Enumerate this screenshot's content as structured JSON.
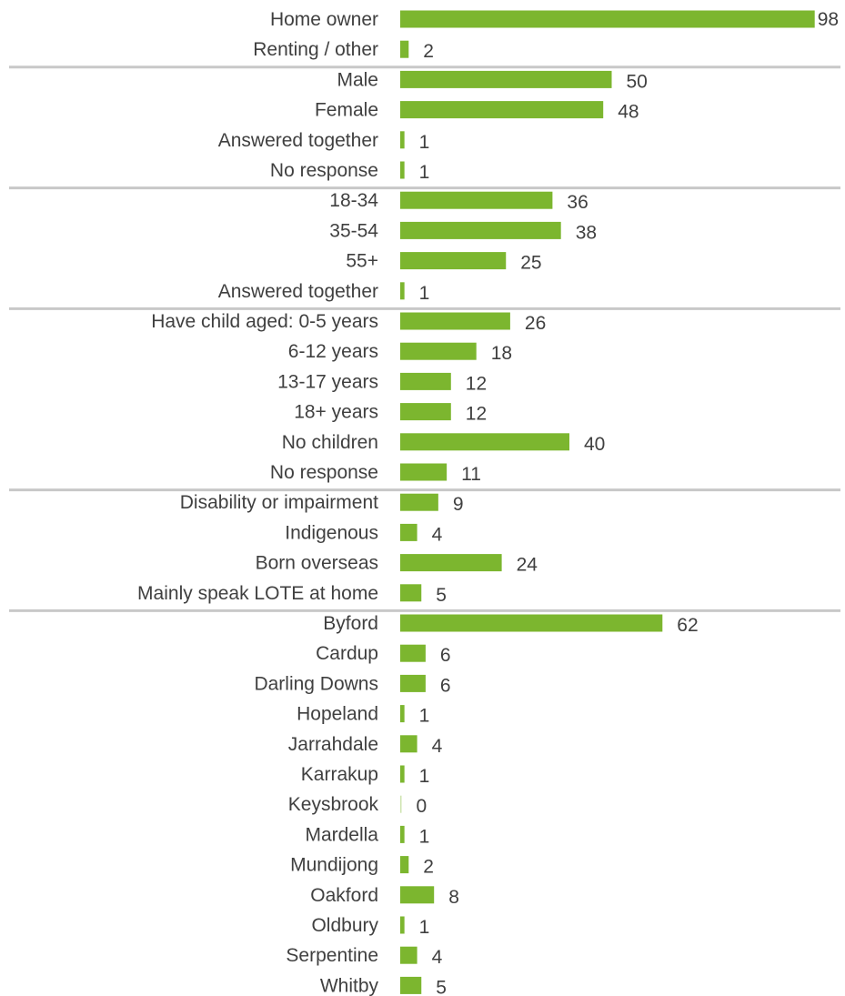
{
  "chart_data": {
    "type": "bar",
    "orientation": "horizontal",
    "bar_color": "#7cb62f",
    "divider_color": "#c8c8c8",
    "text_color": "#404040",
    "xlim": [
      0,
      100
    ],
    "grid": false,
    "legend": "none",
    "groups": [
      {
        "categories": [
          "Home owner",
          "Renting / other"
        ],
        "values": [
          98,
          2
        ]
      },
      {
        "categories": [
          "Male",
          "Female",
          "Answered together",
          "No response"
        ],
        "values": [
          50,
          48,
          1,
          1
        ]
      },
      {
        "categories": [
          "18-34",
          "35-54",
          "55+",
          "Answered together"
        ],
        "values": [
          36,
          38,
          25,
          1
        ]
      },
      {
        "categories": [
          "Have child aged: 0-5 years",
          "6-12 years",
          "13-17 years",
          "18+ years",
          "No children",
          "No response"
        ],
        "values": [
          26,
          18,
          12,
          12,
          40,
          11
        ]
      },
      {
        "categories": [
          "Disability or impairment",
          "Indigenous",
          "Born overseas",
          "Mainly speak LOTE at home"
        ],
        "values": [
          9,
          4,
          24,
          5
        ]
      },
      {
        "categories": [
          "Byford",
          "Cardup",
          "Darling Downs",
          "Hopeland",
          "Jarrahdale",
          "Karrakup",
          "Keysbrook",
          "Mardella",
          "Mundijong",
          "Oakford",
          "Oldbury",
          "Serpentine",
          "Whitby"
        ],
        "values": [
          62,
          6,
          6,
          1,
          4,
          1,
          0,
          1,
          2,
          8,
          1,
          4,
          5
        ]
      }
    ]
  }
}
